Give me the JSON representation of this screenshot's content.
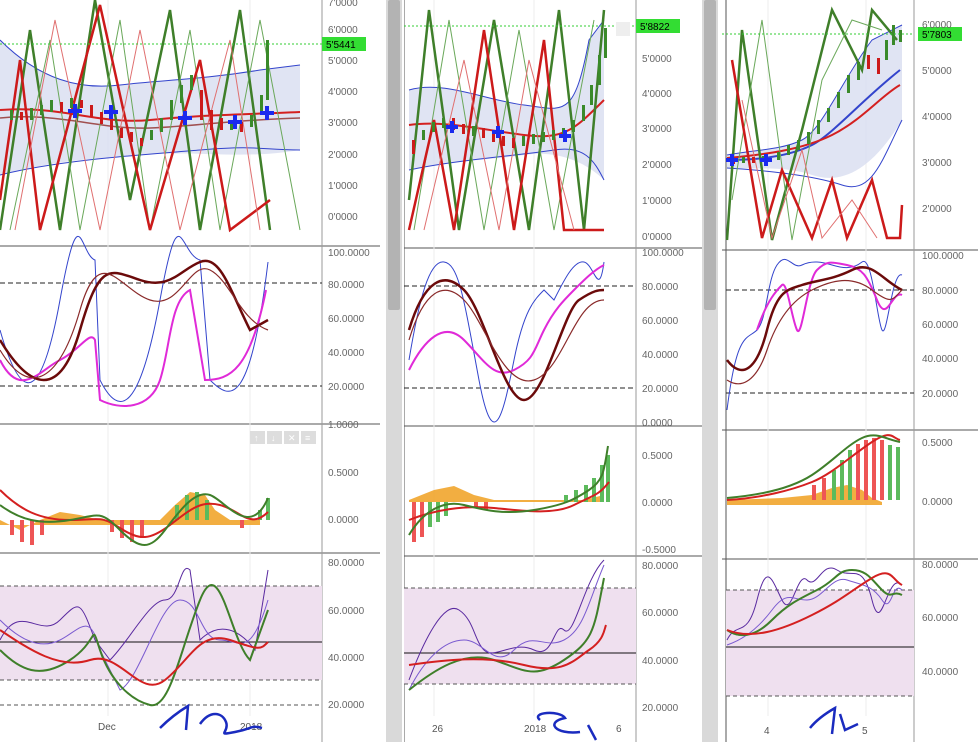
{
  "panels": [
    {
      "id": "left",
      "price_tag": "5'5441",
      "price_axis": [
        "7'0000",
        "6'0000",
        "5'0000",
        "4'0000",
        "3'0000",
        "2'0000",
        "1'0000",
        "0'0000"
      ],
      "osc_axis": [
        "100.0000",
        "80.0000",
        "60.0000",
        "40.0000",
        "20.0000"
      ],
      "macd_axis": [
        "1.0000",
        "0.5000",
        "0.0000"
      ],
      "rsi_axis": [
        "80.0000",
        "60.0000",
        "40.0000",
        "20.0000"
      ],
      "x_ticks": [
        "Dec",
        "2018"
      ],
      "toolbar_icons": [
        "up-arrow-icon",
        "down-arrow-icon",
        "close-icon",
        "settings-icon"
      ]
    },
    {
      "id": "middle",
      "price_tag": "5'8822",
      "price_axis": [
        "5'0000",
        "4'0000",
        "3'0000",
        "2'0000",
        "1'0000",
        "0'0000"
      ],
      "osc_axis": [
        "100.0000",
        "80.0000",
        "60.0000",
        "40.0000",
        "20.0000",
        "0.0000"
      ],
      "macd_axis": [
        "0.5000",
        "0.0000",
        "-0.5000"
      ],
      "rsi_axis": [
        "80.0000",
        "60.0000",
        "40.0000",
        "20.0000"
      ],
      "x_ticks": [
        "26",
        "2018",
        "6"
      ]
    },
    {
      "id": "right",
      "price_tag": "5'7803",
      "price_axis": [
        "6'0000",
        "5'0000",
        "4'0000",
        "3'0000",
        "2'0000"
      ],
      "osc_axis": [
        "100.0000",
        "80.0000",
        "60.0000",
        "40.0000",
        "20.0000"
      ],
      "macd_axis": [
        "0.5000",
        "0.0000"
      ],
      "rsi_axis": [
        "80.0000",
        "60.0000",
        "40.0000"
      ],
      "x_ticks": [
        "4",
        "5"
      ]
    }
  ],
  "colors": {
    "bull": "#3a8a2a",
    "bear": "#cc1a1a",
    "green_line": "#3f7f2a",
    "red_line": "#d42020",
    "band_fill": "#d8ddf0",
    "band_line": "#3344cc",
    "maroon": "#6b0a0a",
    "magenta": "#e02ad8",
    "orange": "#f0a020",
    "rsi_fill": "#efe0ef",
    "price_tag": "#33dd33",
    "blue_marker": "#1a2aee",
    "annotation": "#1a2bbf"
  },
  "chart_data": [
    {
      "type": "line",
      "panel": "left",
      "subcharts": [
        "price-candles-bands",
        "stochastic-oscillator",
        "macd-histogram",
        "rsi"
      ],
      "price_ylim": [
        -0.6,
        7.0
      ],
      "last_price": 5.5441,
      "osc_levels": [
        80,
        20
      ],
      "rsi_ylim": [
        20,
        80
      ]
    },
    {
      "type": "line",
      "panel": "middle",
      "subcharts": [
        "price-candles-bands",
        "stochastic-oscillator",
        "macd-histogram",
        "rsi"
      ],
      "price_ylim": [
        0,
        6.5
      ],
      "last_price": 5.8822,
      "osc_levels": [
        80,
        20
      ],
      "macd_ylim": [
        -0.5,
        0.5
      ]
    },
    {
      "type": "line",
      "panel": "right",
      "subcharts": [
        "price-candles-bands",
        "stochastic-oscillator",
        "macd-histogram",
        "rsi"
      ],
      "price_ylim": [
        1.2,
        6.5
      ],
      "last_price": 5.7803,
      "osc_levels": [
        80,
        20
      ]
    }
  ]
}
